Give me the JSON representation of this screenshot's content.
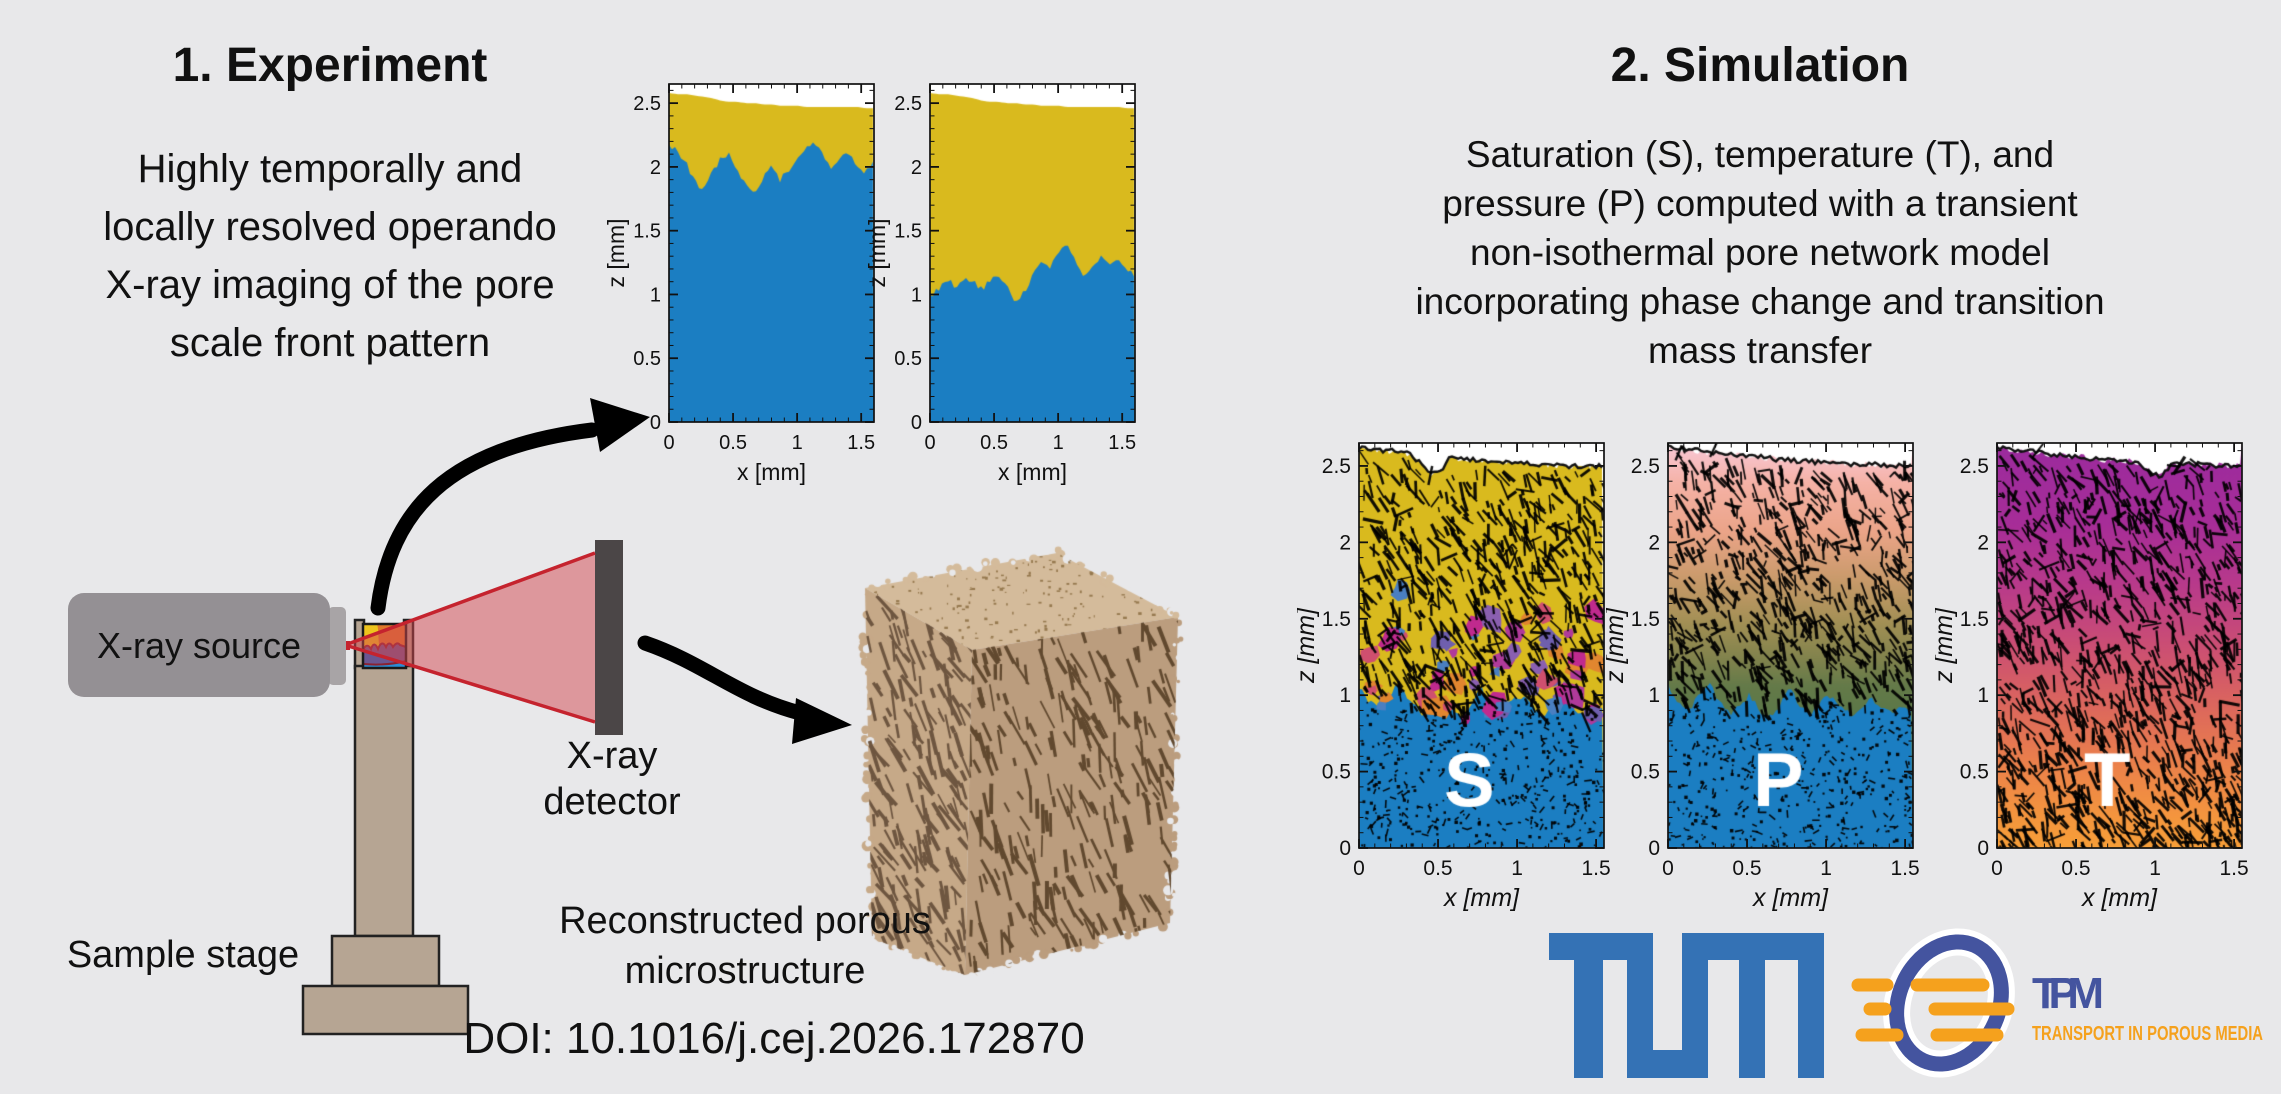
{
  "page": {
    "background": "#e8e8ea"
  },
  "experiment": {
    "title": "1. Experiment",
    "description": "Highly temporally and\nlocally resolved operando\nX-ray imaging of the pore\nscale front pattern",
    "labels": {
      "source": "X-ray source",
      "stage": "Sample stage",
      "detector_line1": "X-ray",
      "detector_line2": "detector",
      "microstructure": "Reconstructed porous\nmicrostructure"
    }
  },
  "simulation": {
    "title": "2. Simulation",
    "description": "Saturation (S), temperature (T), and\npressure (P) computed with a transient\nnon-isothermal pore network model\nincorporating phase change and transition\nmass transfer"
  },
  "doi": "DOI: 10.1016/j.cej.2026.172870",
  "logos": {
    "tum": {
      "color": "#3472b5"
    },
    "tpm": {
      "acronym": "TPM",
      "subtitle": "TRANSPORT IN POROUS MEDIA",
      "blue": "#44549f",
      "orange": "#f5a11d"
    }
  },
  "chart_data": [
    {
      "id": "exp1",
      "type": "area",
      "xlabel": "x [mm]",
      "ylabel": "z [mm]",
      "x_ticks": [
        0,
        0.5,
        1,
        1.5
      ],
      "z_ticks": [
        0,
        0.5,
        1,
        1.5,
        2,
        2.5
      ],
      "x_range": [
        0,
        1.6
      ],
      "z_range": [
        0,
        2.65
      ],
      "colors": {
        "dry_zone": "#d9ba1e",
        "wet_zone": "#1b7ec2"
      },
      "front_profile": [
        2.18,
        2.12,
        2.04,
        1.88,
        1.82,
        1.95,
        2.06,
        2.1,
        1.97,
        1.86,
        1.8,
        1.92,
        2.02,
        1.9,
        1.97,
        2.06,
        2.14,
        2.2,
        2.1,
        2.0,
        2.05,
        2.12,
        2.02,
        1.96,
        2.05
      ],
      "surface_profile": [
        2.58,
        2.57,
        2.57,
        2.56,
        2.55,
        2.54,
        2.52,
        2.51,
        2.51,
        2.5,
        2.5,
        2.49,
        2.49,
        2.48,
        2.48,
        2.48,
        2.47,
        2.47,
        2.47,
        2.47,
        2.47,
        2.47,
        2.47,
        2.46,
        2.46
      ]
    },
    {
      "id": "exp2",
      "type": "area",
      "xlabel": "x [mm]",
      "ylabel": "z [mm]",
      "x_ticks": [
        0,
        0.5,
        1,
        1.5
      ],
      "z_ticks": [
        0,
        0.5,
        1,
        1.5,
        2,
        2.5
      ],
      "x_range": [
        0,
        1.6
      ],
      "z_range": [
        0,
        2.65
      ],
      "colors": {
        "dry_zone": "#d9ba1e",
        "wet_zone": "#1b7ec2"
      },
      "front_profile": [
        0.98,
        1.04,
        1.12,
        1.06,
        1.14,
        1.1,
        1.04,
        1.1,
        1.16,
        1.08,
        0.92,
        1.02,
        1.14,
        1.26,
        1.2,
        1.32,
        1.38,
        1.26,
        1.14,
        1.2,
        1.3,
        1.22,
        1.28,
        1.2,
        1.16
      ],
      "surface_profile": [
        2.58,
        2.57,
        2.57,
        2.56,
        2.55,
        2.54,
        2.52,
        2.51,
        2.51,
        2.5,
        2.5,
        2.49,
        2.49,
        2.48,
        2.48,
        2.48,
        2.47,
        2.47,
        2.47,
        2.47,
        2.47,
        2.47,
        2.47,
        2.46,
        2.46
      ]
    },
    {
      "id": "simS",
      "type": "field",
      "label": "S",
      "quantity": "Saturation",
      "xlabel": "x [mm]",
      "ylabel": "z [mm]",
      "x_ticks": [
        0,
        0.5,
        1,
        1.5
      ],
      "z_ticks": [
        0,
        0.5,
        1,
        1.5,
        2,
        2.5
      ],
      "x_range": [
        0,
        1.55
      ],
      "z_range": [
        0,
        2.65
      ],
      "colors": {
        "dry_zone": "#d9ba1e",
        "wet_zone": "#1b7ec2",
        "patches": [
          "#c02a8e",
          "#8a5fb0",
          "#6f5fae",
          "#e1862f",
          "#cf4f6f",
          "#4a7fc1",
          "#b03a9a"
        ]
      },
      "front_profile": [
        1.06,
        0.96,
        0.9,
        1.0,
        1.08,
        0.96,
        0.88,
        0.92,
        1.0,
        0.9,
        0.86,
        0.94,
        1.04,
        0.92,
        0.88,
        0.96,
        1.0,
        0.92,
        0.86,
        0.9,
        0.98,
        0.92,
        0.88,
        0.94,
        0.9
      ],
      "surface_profile": [
        2.62,
        2.61,
        2.6,
        2.6,
        2.59,
        2.58,
        2.52,
        2.45,
        2.47,
        2.56,
        2.55,
        2.54,
        2.54,
        2.53,
        2.53,
        2.52,
        2.52,
        2.51,
        2.51,
        2.51,
        2.5,
        2.5,
        2.5,
        2.5,
        2.5
      ]
    },
    {
      "id": "simP",
      "type": "field",
      "label": "P",
      "quantity": "Pressure",
      "xlabel": "x [mm]",
      "ylabel": "z [mm]",
      "x_ticks": [
        0,
        0.5,
        1,
        1.5
      ],
      "z_ticks": [
        0,
        0.5,
        1,
        1.5,
        2,
        2.5
      ],
      "x_range": [
        0,
        1.55
      ],
      "z_range": [
        0,
        2.65
      ],
      "colors": {
        "wet_zone": "#1b7ec2"
      },
      "gradient": [
        [
          0,
          "#f9c9d8"
        ],
        [
          0.1,
          "#f5b2a6"
        ],
        [
          0.22,
          "#eba488"
        ],
        [
          0.34,
          "#c89a6a"
        ],
        [
          0.45,
          "#a08f54"
        ],
        [
          0.53,
          "#82834d"
        ],
        [
          0.6,
          "#647a49"
        ],
        [
          0.7,
          "#587747"
        ],
        [
          1,
          "#587747"
        ]
      ],
      "front_profile": [
        1.06,
        0.96,
        0.9,
        1.0,
        1.08,
        0.96,
        0.88,
        0.92,
        1.0,
        0.9,
        0.86,
        0.94,
        1.04,
        0.92,
        0.88,
        0.96,
        1.0,
        0.92,
        0.86,
        0.9,
        0.98,
        0.92,
        0.88,
        0.94,
        0.9
      ],
      "surface_profile": [
        2.62,
        2.61,
        2.61,
        2.6,
        2.59,
        2.58,
        2.58,
        2.57,
        2.56,
        2.56,
        2.55,
        2.54,
        2.54,
        2.53,
        2.53,
        2.52,
        2.52,
        2.52,
        2.51,
        2.51,
        2.51,
        2.5,
        2.5,
        2.5,
        2.5
      ]
    },
    {
      "id": "simT",
      "type": "field",
      "label": "T",
      "quantity": "Temperature",
      "xlabel": "x [mm]",
      "ylabel": "z [mm]",
      "x_ticks": [
        0,
        0.5,
        1,
        1.5
      ],
      "z_ticks": [
        0,
        0.5,
        1,
        1.5,
        2,
        2.5
      ],
      "x_range": [
        0,
        1.55
      ],
      "z_range": [
        0,
        2.65
      ],
      "gradient": [
        [
          0,
          "#9b2b9e"
        ],
        [
          0.2,
          "#a72d98"
        ],
        [
          0.35,
          "#b83a8b"
        ],
        [
          0.5,
          "#cb4e74"
        ],
        [
          0.65,
          "#dc675d"
        ],
        [
          0.8,
          "#ec824a"
        ],
        [
          0.92,
          "#f4953e"
        ],
        [
          1,
          "#f89f38"
        ]
      ],
      "surface_profile": [
        2.62,
        2.61,
        2.6,
        2.6,
        2.59,
        2.58,
        2.57,
        2.56,
        2.56,
        2.55,
        2.54,
        2.54,
        2.53,
        2.53,
        2.52,
        2.46,
        2.43,
        2.5,
        2.52,
        2.51,
        2.51,
        2.5,
        2.5,
        2.5,
        2.5
      ]
    }
  ]
}
